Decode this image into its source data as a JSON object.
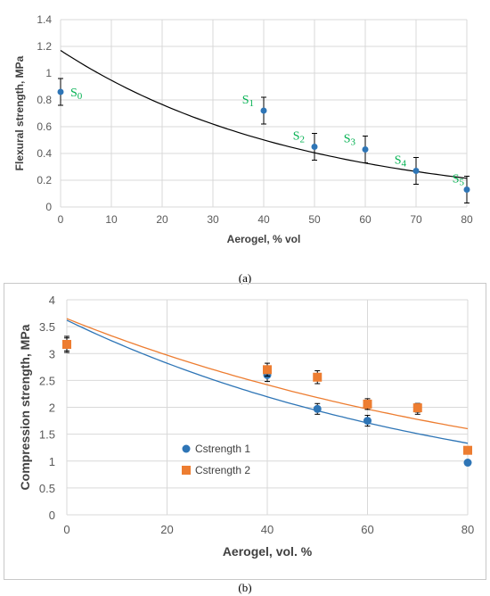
{
  "figure": {
    "caption_a": "(a)",
    "caption_b": "(b)"
  },
  "chart_data": [
    {
      "type": "scatter",
      "title": "",
      "xlabel": "Aerogel, % vol",
      "ylabel": "Flexural strength, MPa",
      "xlim": [
        0,
        80
      ],
      "ylim": [
        0,
        1.4
      ],
      "xticks": [
        "0",
        "10",
        "20",
        "30",
        "40",
        "50",
        "60",
        "70",
        "80"
      ],
      "yticks": [
        "0",
        "0.2",
        "0.4",
        "0.6",
        "0.8",
        "1",
        "1.2",
        "1.4"
      ],
      "grid": true,
      "colors": {
        "points": "#2e75b6",
        "curve": "#000000",
        "labels": "#00b050"
      },
      "points": [
        {
          "x": 0,
          "y": 0.86,
          "err": 0.1,
          "label": "S",
          "sub": "0"
        },
        {
          "x": 40,
          "y": 0.72,
          "err": 0.1,
          "label": "S",
          "sub": "1"
        },
        {
          "x": 50,
          "y": 0.45,
          "err": 0.1,
          "label": "S",
          "sub": "2"
        },
        {
          "x": 60,
          "y": 0.43,
          "err": 0.1,
          "label": "S",
          "sub": "3"
        },
        {
          "x": 70,
          "y": 0.27,
          "err": 0.1,
          "label": "S",
          "sub": "4"
        },
        {
          "x": 80,
          "y": 0.13,
          "err": 0.1,
          "label": "S",
          "sub": "5"
        }
      ],
      "trendline": {
        "type": "exponential",
        "a": 1.17,
        "b": -0.0212
      }
    },
    {
      "type": "scatter",
      "title": "",
      "xlabel": "Aerogel, vol. %",
      "ylabel": "Compression strength, MPa",
      "xlim": [
        0,
        80
      ],
      "ylim": [
        0,
        4
      ],
      "xticks": [
        "0",
        "20",
        "40",
        "60",
        "80"
      ],
      "yticks": [
        "0",
        "0.5",
        "1",
        "1.5",
        "2",
        "2.5",
        "3",
        "3.5",
        "4"
      ],
      "grid": true,
      "legend_position": "left",
      "series": [
        {
          "name": "Cstrength 1",
          "marker": "circle",
          "color": "#2e75b6",
          "x": [
            0,
            40,
            50,
            60,
            70,
            80
          ],
          "y": [
            3.17,
            2.6,
            1.97,
            1.75,
            1.97,
            0.97
          ],
          "err": [
            0.12,
            0.12,
            0.1,
            0.1,
            0.1,
            0
          ],
          "trendline": {
            "type": "exponential",
            "a": 3.62,
            "b": -0.0125
          }
        },
        {
          "name": "Cstrength 2",
          "marker": "square",
          "color": "#ed7d31",
          "x": [
            0,
            40,
            50,
            60,
            70,
            80
          ],
          "y": [
            3.17,
            2.7,
            2.56,
            2.06,
            1.99,
            1.2
          ],
          "err": [
            0.15,
            0.12,
            0.12,
            0.1,
            0.08,
            0
          ],
          "trendline": {
            "type": "exponential",
            "a": 3.65,
            "b": -0.0103
          }
        }
      ]
    }
  ]
}
